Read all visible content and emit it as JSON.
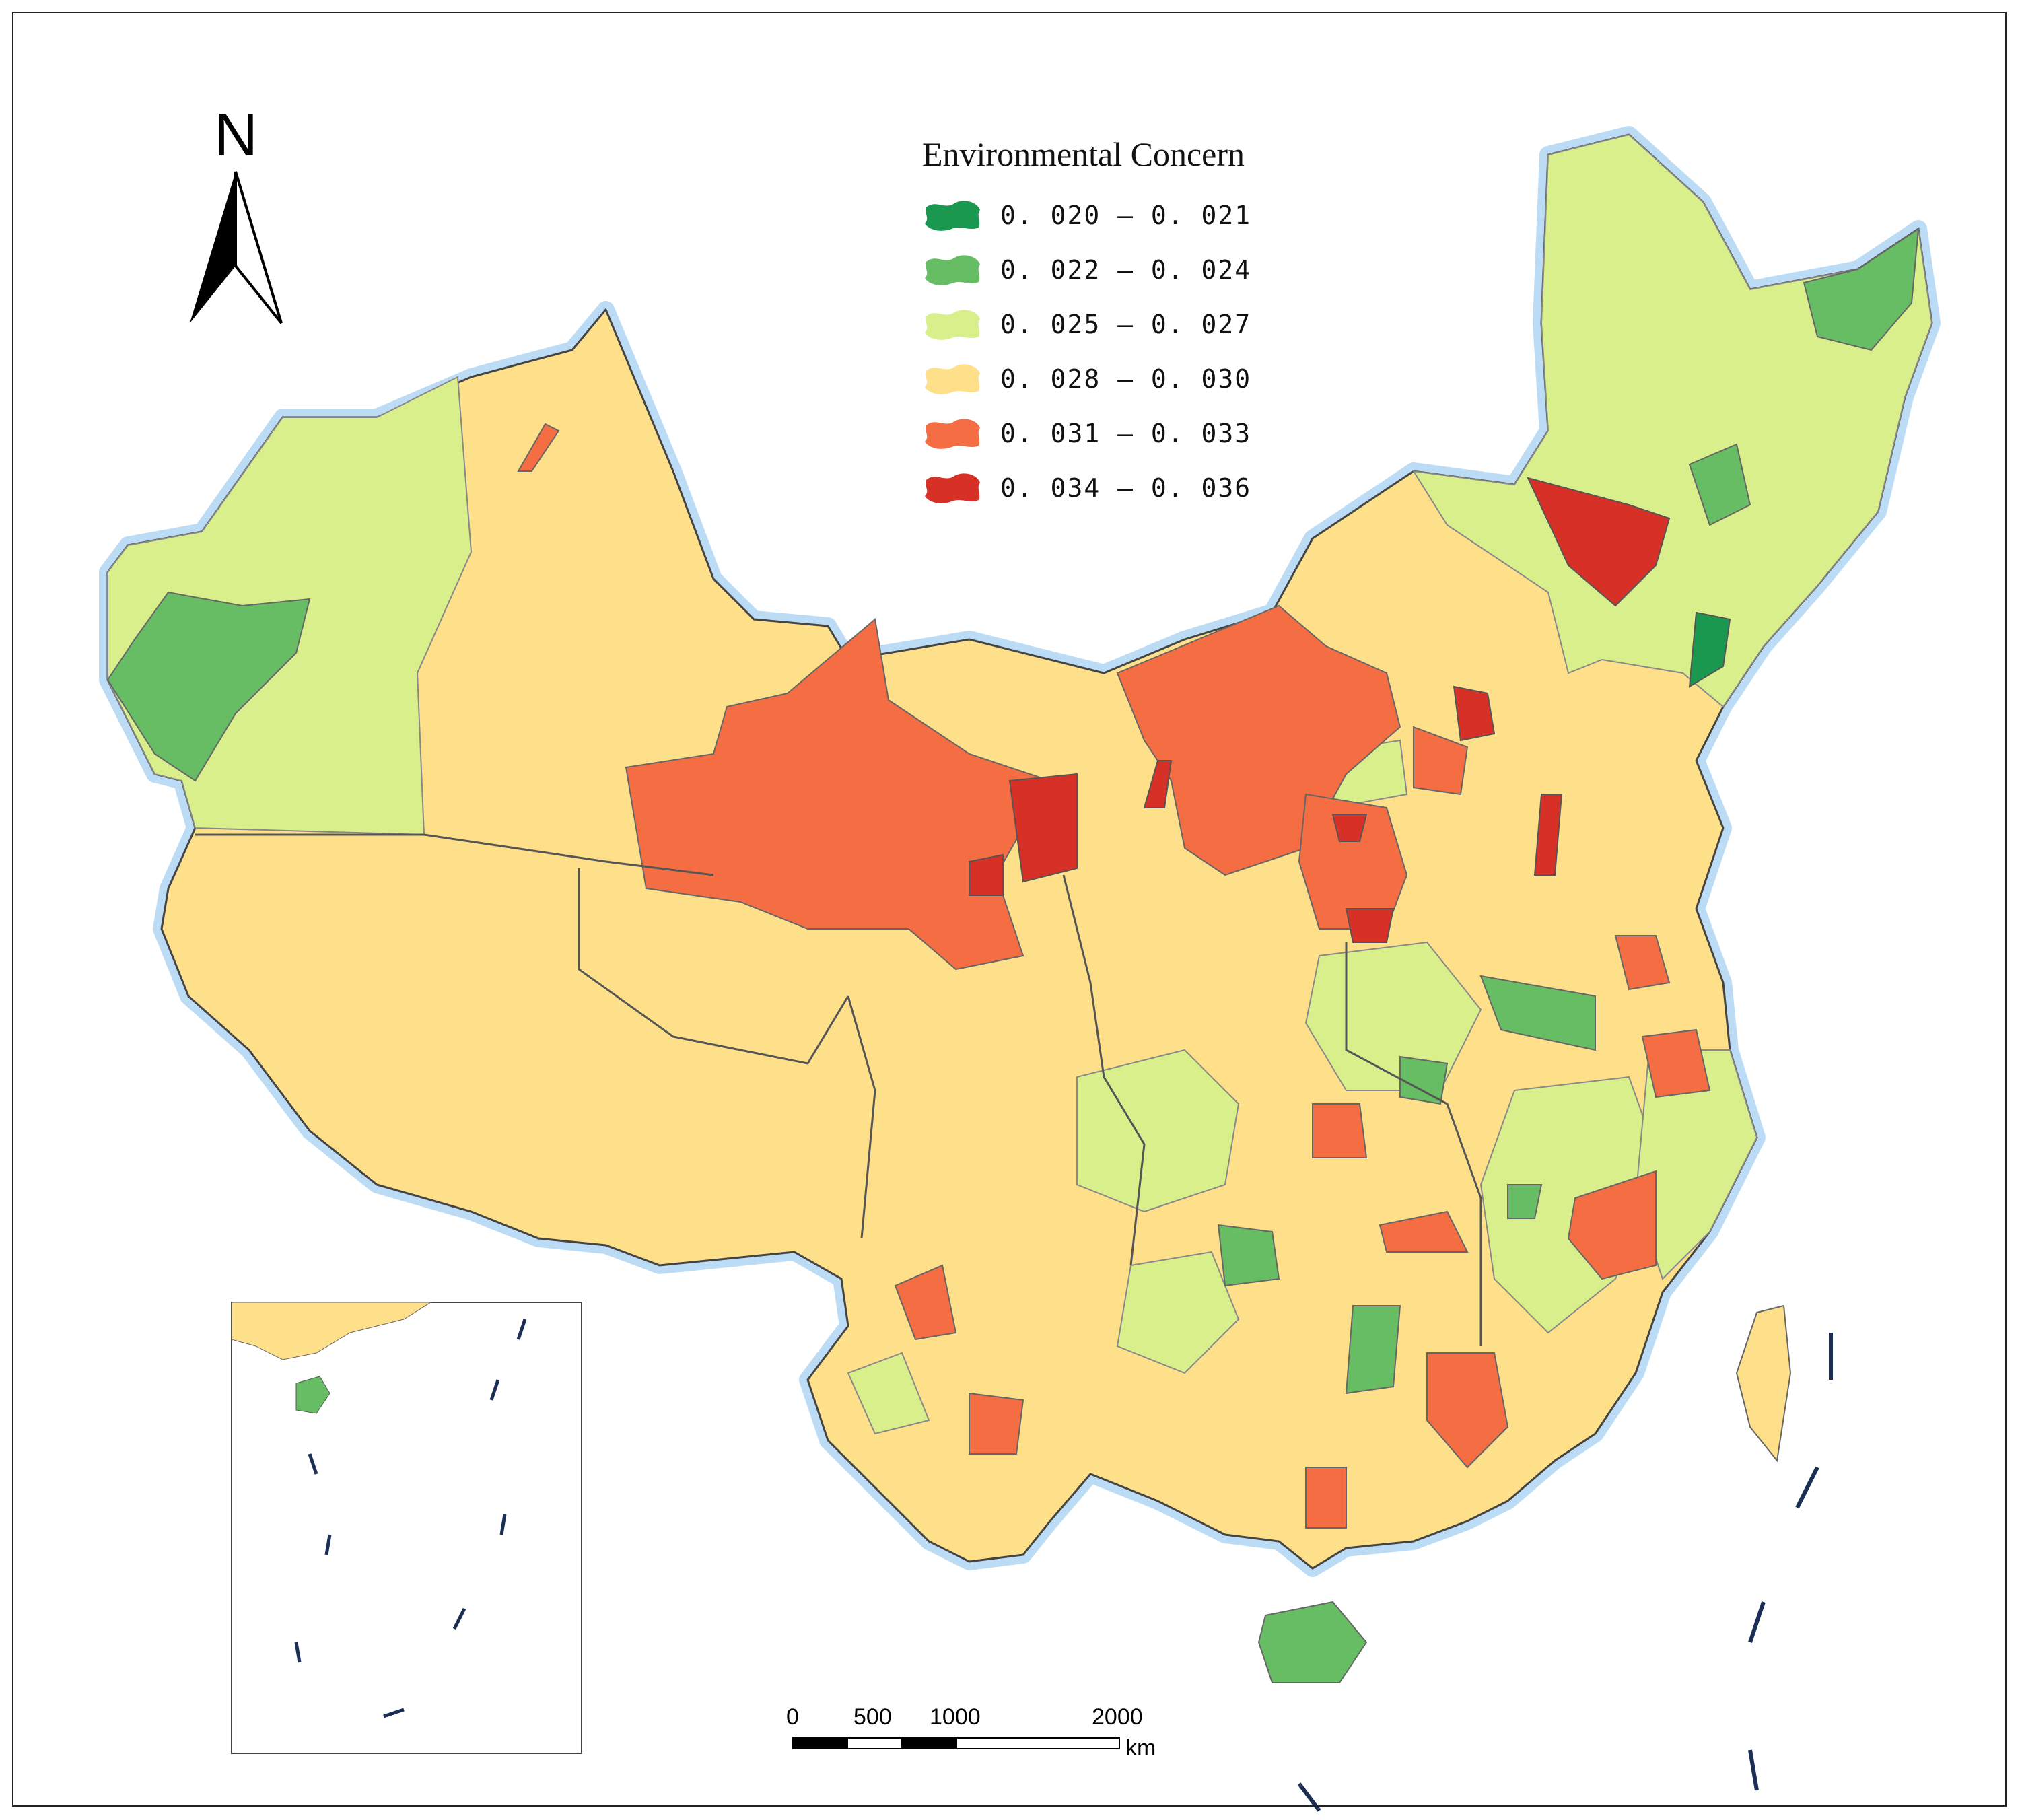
{
  "legend": {
    "title": "Environmental Concern",
    "classes": [
      {
        "min": "0.020",
        "max": "0.021",
        "label": "0. 020 — 0. 021",
        "color": "#1a9850"
      },
      {
        "min": "0.022",
        "max": "0.024",
        "label": "0. 022 — 0. 024",
        "color": "#66bd63"
      },
      {
        "min": "0.025",
        "max": "0.027",
        "label": "0. 025 — 0. 027",
        "color": "#d9ef8b"
      },
      {
        "min": "0.028",
        "max": "0.030",
        "label": "0. 028 — 0. 030",
        "color": "#fee08b"
      },
      {
        "min": "0.031",
        "max": "0.033",
        "label": "0. 031 — 0. 033",
        "color": "#f46d43"
      },
      {
        "min": "0.034",
        "max": "0.036",
        "label": "0. 034 — 0. 036",
        "color": "#d73027"
      }
    ]
  },
  "north_arrow": {
    "label": "N"
  },
  "scale_bar": {
    "ticks": [
      "0",
      "500",
      "1000",
      "2000"
    ],
    "unit": "km"
  },
  "colors": {
    "coast_halo": "#bcdcf5",
    "boundary": "#555555",
    "background": "#ffffff"
  }
}
